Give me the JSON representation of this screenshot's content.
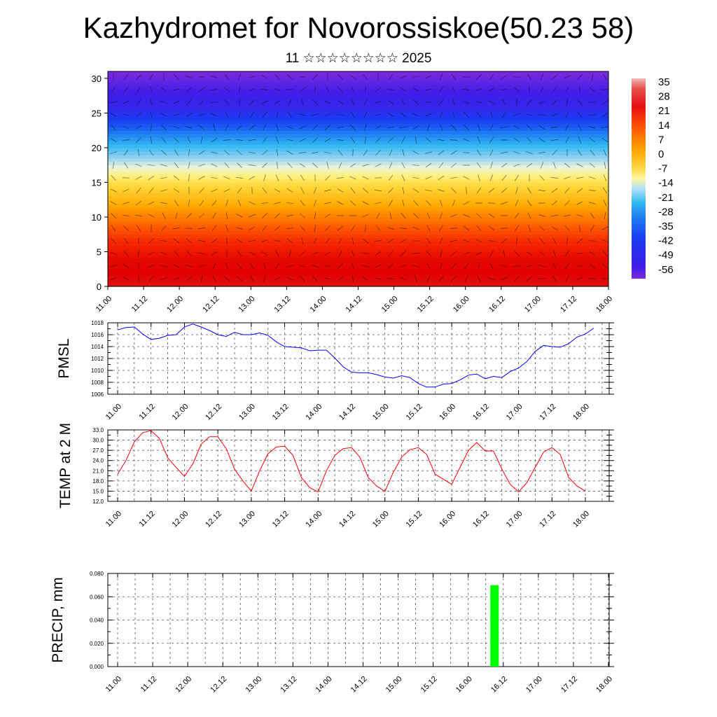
{
  "title": "Kazhydromet for Novorossiskoe(50.23 58)",
  "subtitle": "11 ☆☆☆☆☆☆☆☆ 2025",
  "time_labels": [
    "11.00",
    "11.12",
    "12.00",
    "12.12",
    "13.00",
    "13.12",
    "14.00",
    "14.12",
    "15.00",
    "15.12",
    "16.00",
    "16.12",
    "17.00",
    "17.12",
    "18.00"
  ],
  "chart_data": [
    {
      "type": "heatmap",
      "name": "cross-section",
      "x": [
        "11.00",
        "11.12",
        "12.00",
        "12.12",
        "13.00",
        "13.12",
        "14.00",
        "14.12",
        "15.00",
        "15.12",
        "16.00",
        "16.12",
        "17.00",
        "17.12",
        "18.00"
      ],
      "ylim": [
        0,
        31
      ],
      "yticks": [
        0,
        5,
        10,
        15,
        20,
        25,
        30
      ],
      "colorbar_labels": [
        "35",
        "28",
        "21",
        "14",
        "7",
        "0",
        "-7",
        "-14",
        "-21",
        "-28",
        "-35",
        "-42",
        "-49",
        "-56"
      ],
      "colorbar_range": [
        -60,
        38
      ],
      "temperature_profile": [
        [
          0,
          28
        ],
        [
          4,
          24
        ],
        [
          8,
          14
        ],
        [
          12,
          2
        ],
        [
          15,
          -5
        ],
        [
          17,
          -12
        ],
        [
          20,
          -28
        ],
        [
          23,
          -44
        ],
        [
          26,
          -54
        ],
        [
          28,
          -56
        ],
        [
          31,
          -60
        ]
      ],
      "grid": false
    },
    {
      "type": "line",
      "name": "pmsl",
      "ylabel": "PMSL",
      "ylim": [
        1006,
        1018
      ],
      "yticks": [
        "1006",
        "1008",
        "1010",
        "1012",
        "1014",
        "1016",
        "1018"
      ],
      "x_start": "11.00",
      "step_hours": 3,
      "values": [
        1016.8,
        1017.2,
        1017.3,
        1016.1,
        1015.2,
        1015.4,
        1015.9,
        1016.0,
        1017.3,
        1017.8,
        1017.3,
        1016.7,
        1016.0,
        1015.7,
        1016.4,
        1016.0,
        1016.0,
        1016.3,
        1015.9,
        1014.8,
        1014.0,
        1013.9,
        1013.8,
        1013.3,
        1013.4,
        1013.4,
        1012.1,
        1010.6,
        1009.7,
        1009.6,
        1009.6,
        1009.3,
        1008.9,
        1008.7,
        1009.1,
        1008.8,
        1007.8,
        1007.2,
        1007.2,
        1007.7,
        1007.8,
        1008.4,
        1009.2,
        1009.4,
        1008.6,
        1009.0,
        1008.8,
        1009.8,
        1010.4,
        1011.5,
        1013.2,
        1014.2,
        1014.0,
        1013.9,
        1014.5,
        1015.6,
        1016.1,
        1017.1
      ],
      "color": "#0000ff",
      "grid": true
    },
    {
      "type": "line",
      "name": "temp2m",
      "ylabel": "TEMP at 2 M",
      "ylim": [
        12,
        33
      ],
      "yticks": [
        "12.0",
        "15.0",
        "18.0",
        "21.0",
        "24.0",
        "27.0",
        "30.0",
        "33.0"
      ],
      "x_start": "11.00",
      "step_hours": 3,
      "values": [
        20.0,
        24.0,
        29.5,
        32.2,
        32.8,
        30.5,
        24.8,
        22.0,
        19.3,
        23.0,
        28.8,
        31.0,
        31.0,
        27.5,
        21.5,
        18.0,
        15.0,
        21.0,
        26.0,
        28.0,
        28.2,
        25.5,
        19.0,
        16.0,
        14.8,
        21.0,
        25.5,
        27.5,
        27.8,
        25.0,
        19.0,
        16.5,
        14.9,
        20.5,
        25.0,
        27.2,
        27.8,
        25.8,
        20.0,
        18.5,
        17.0,
        22.0,
        27.0,
        29.3,
        26.8,
        26.8,
        21.5,
        17.0,
        14.8,
        17.5,
        22.0,
        26.5,
        27.8,
        25.8,
        19.0,
        16.5,
        15.0
      ],
      "color": "#ff0000",
      "grid": true
    },
    {
      "type": "bar",
      "name": "precip",
      "ylabel": "PRECIP, mm",
      "ylim": [
        0,
        0.08
      ],
      "yticks": [
        "0.000",
        "0.020",
        "0.040",
        "0.060",
        "0.080"
      ],
      "bars": [
        {
          "x": "16.09",
          "value": 0.07
        }
      ],
      "color": "#00ff00",
      "grid": true
    }
  ]
}
